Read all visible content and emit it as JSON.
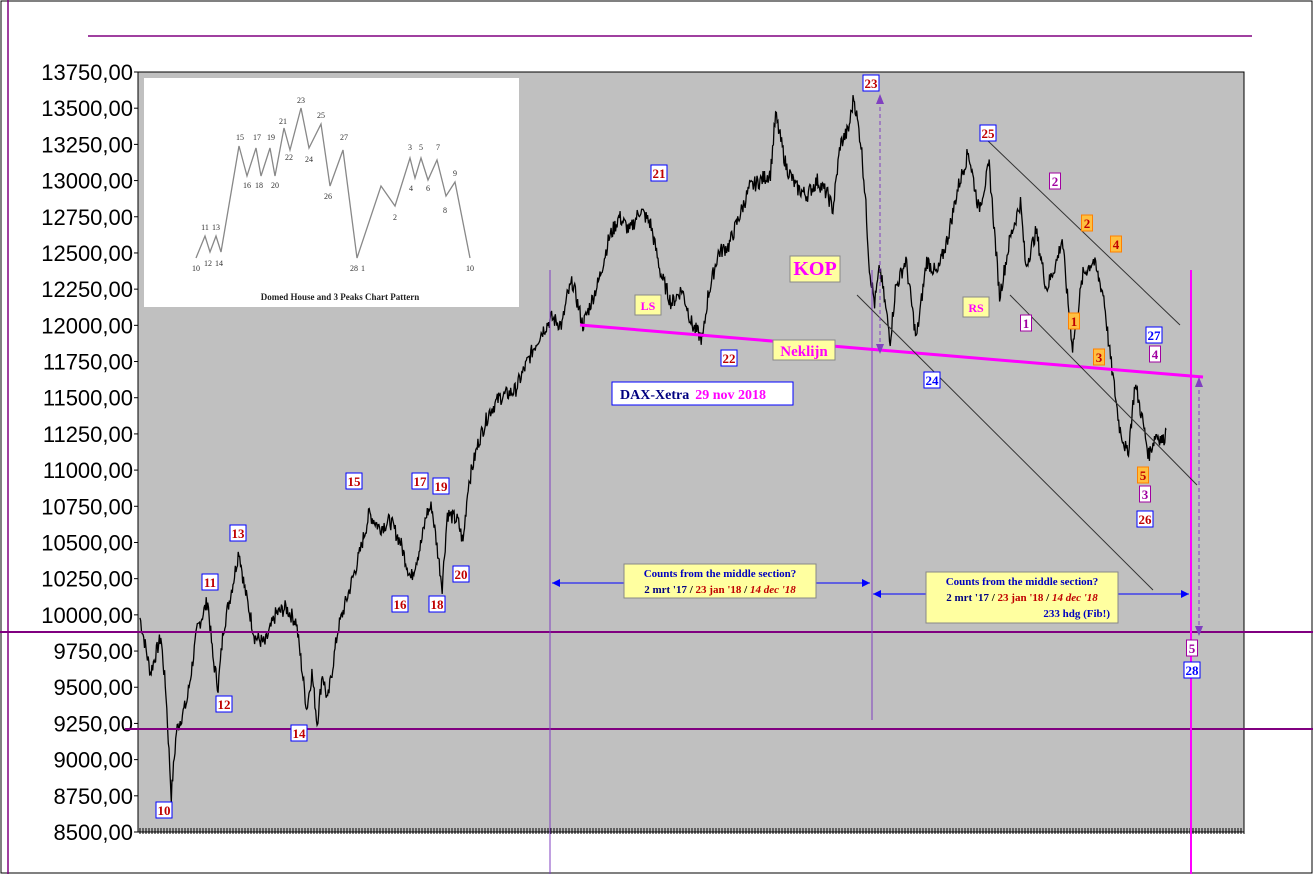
{
  "chart_data": {
    "type": "line",
    "title": "DAX-Xetra",
    "title_date": "29 nov 2018",
    "ylim": [
      8500,
      13750
    ],
    "yticks": [
      "13750,00",
      "13500,00",
      "13250,00",
      "13000,00",
      "12750,00",
      "12500,00",
      "12250,00",
      "12000,00",
      "11750,00",
      "11500,00",
      "11250,00",
      "11000,00",
      "10750,00",
      "10500,00",
      "10250,00",
      "10000,00",
      "9750,00",
      "9500,00",
      "9250,00",
      "9000,00",
      "8750,00",
      "8500,00"
    ],
    "x_start_index": 0,
    "x_end_index": 1000,
    "series": [
      {
        "points": [
          [
            0,
            9980
          ],
          [
            10,
            9600
          ],
          [
            20,
            9850
          ],
          [
            25,
            9450
          ],
          [
            30,
            8750
          ],
          [
            35,
            9200
          ],
          [
            45,
            9400
          ],
          [
            55,
            9900
          ],
          [
            65,
            10100
          ],
          [
            70,
            9700
          ],
          [
            75,
            9500
          ],
          [
            80,
            9900
          ],
          [
            90,
            10250
          ],
          [
            95,
            10450
          ],
          [
            100,
            10200
          ],
          [
            110,
            9850
          ],
          [
            120,
            9800
          ],
          [
            130,
            10000
          ],
          [
            140,
            10050
          ],
          [
            150,
            9950
          ],
          [
            160,
            9350
          ],
          [
            165,
            9600
          ],
          [
            170,
            9250
          ],
          [
            175,
            9600
          ],
          [
            180,
            9400
          ],
          [
            190,
            9900
          ],
          [
            200,
            10150
          ],
          [
            210,
            10400
          ],
          [
            220,
            10700
          ],
          [
            230,
            10600
          ],
          [
            240,
            10650
          ],
          [
            250,
            10500
          ],
          [
            260,
            10250
          ],
          [
            270,
            10500
          ],
          [
            275,
            10700
          ],
          [
            280,
            10750
          ],
          [
            290,
            10200
          ],
          [
            295,
            10700
          ],
          [
            305,
            10650
          ],
          [
            310,
            10500
          ],
          [
            315,
            10900
          ],
          [
            325,
            11200
          ],
          [
            335,
            11400
          ],
          [
            345,
            11500
          ],
          [
            360,
            11550
          ],
          [
            375,
            11800
          ],
          [
            385,
            11950
          ],
          [
            395,
            12050
          ],
          [
            405,
            12000
          ],
          [
            410,
            12200
          ],
          [
            415,
            12300
          ],
          [
            425,
            12000
          ],
          [
            430,
            12100
          ],
          [
            440,
            12300
          ],
          [
            450,
            12600
          ],
          [
            460,
            12750
          ],
          [
            470,
            12650
          ],
          [
            480,
            12800
          ],
          [
            490,
            12700
          ],
          [
            500,
            12350
          ],
          [
            510,
            12150
          ],
          [
            520,
            12250
          ],
          [
            530,
            12000
          ],
          [
            540,
            11900
          ],
          [
            545,
            12200
          ],
          [
            555,
            12500
          ],
          [
            565,
            12550
          ],
          [
            575,
            12750
          ],
          [
            585,
            12950
          ],
          [
            595,
            13000
          ],
          [
            605,
            13050
          ],
          [
            610,
            13450
          ],
          [
            620,
            13100
          ],
          [
            630,
            12950
          ],
          [
            640,
            12900
          ],
          [
            650,
            13000
          ],
          [
            660,
            12900
          ],
          [
            665,
            12800
          ],
          [
            672,
            13250
          ],
          [
            680,
            13350
          ],
          [
            685,
            13580
          ],
          [
            692,
            13250
          ],
          [
            696,
            12900
          ],
          [
            700,
            12400
          ],
          [
            705,
            12150
          ],
          [
            710,
            12400
          ],
          [
            720,
            11900
          ],
          [
            725,
            12250
          ],
          [
            735,
            12450
          ],
          [
            745,
            11900
          ],
          [
            755,
            12450
          ],
          [
            765,
            12350
          ],
          [
            775,
            12600
          ],
          [
            785,
            12950
          ],
          [
            795,
            13200
          ],
          [
            805,
            12800
          ],
          [
            815,
            13100
          ],
          [
            825,
            12200
          ],
          [
            835,
            12600
          ],
          [
            845,
            12850
          ],
          [
            850,
            12400
          ],
          [
            860,
            12650
          ],
          [
            870,
            12250
          ],
          [
            880,
            12450
          ],
          [
            885,
            12600
          ],
          [
            890,
            12200
          ],
          [
            895,
            11850
          ],
          [
            905,
            12350
          ],
          [
            915,
            12450
          ],
          [
            925,
            12200
          ],
          [
            930,
            11850
          ],
          [
            940,
            11300
          ],
          [
            948,
            11100
          ],
          [
            955,
            11600
          ],
          [
            962,
            11350
          ],
          [
            968,
            11100
          ],
          [
            975,
            11250
          ],
          [
            982,
            11200
          ],
          [
            985,
            11280
          ]
        ]
      }
    ]
  },
  "annotations": {
    "kop": "KOP",
    "neklijn": "Neklijn",
    "ls": "LS",
    "rs": "RS",
    "counts1_line1": "Counts  from  the  middle  section?",
    "counts1_a": "2 mrt '17",
    "counts1_b": "23 jan '18",
    "counts1_c": "14 dec '18",
    "counts2_line1": "Counts  from  the  middle  section?",
    "counts2_a": "2 mrt '17",
    "counts2_b": "23 jan '18",
    "counts2_c": "14 dec '18",
    "counts2_d": "233 hdg (Fib!)",
    "wave_labels": [
      {
        "text": "10",
        "style": "blue-red"
      },
      {
        "text": "11",
        "style": "blue-red"
      },
      {
        "text": "12",
        "style": "blue-red"
      },
      {
        "text": "13",
        "style": "blue-red"
      },
      {
        "text": "14",
        "style": "blue-red"
      },
      {
        "text": "15",
        "style": "blue-red"
      },
      {
        "text": "16",
        "style": "blue-red"
      },
      {
        "text": "17",
        "style": "blue-red"
      },
      {
        "text": "18",
        "style": "blue-red"
      },
      {
        "text": "19",
        "style": "blue-red"
      },
      {
        "text": "20",
        "style": "blue-red"
      },
      {
        "text": "21",
        "style": "blue-red"
      },
      {
        "text": "22",
        "style": "blue-red"
      },
      {
        "text": "23",
        "style": "blue-red"
      },
      {
        "text": "24",
        "style": "blue-blue"
      },
      {
        "text": "25",
        "style": "blue-red"
      },
      {
        "text": "26",
        "style": "blue-red"
      },
      {
        "text": "27",
        "style": "blue-blue"
      },
      {
        "text": "28",
        "style": "blue-blue"
      },
      {
        "text": "1",
        "style": "purple-purple"
      },
      {
        "text": "2",
        "style": "purple-purple"
      },
      {
        "text": "3",
        "style": "purple-purple"
      },
      {
        "text": "4",
        "style": "purple-purple"
      },
      {
        "text": "5",
        "style": "purple-purple"
      },
      {
        "text": "1",
        "style": "orange"
      },
      {
        "text": "2",
        "style": "orange"
      },
      {
        "text": "3",
        "style": "orange"
      },
      {
        "text": "4",
        "style": "orange"
      },
      {
        "text": "5",
        "style": "orange"
      }
    ]
  },
  "inset": {
    "caption": "Domed House and 3 Peaks Chart Pattern",
    "labels": [
      "10",
      "11",
      "13",
      "12",
      "14",
      "15",
      "16",
      "17",
      "18",
      "19",
      "20",
      "21",
      "22",
      "23",
      "24",
      "25",
      "26",
      "27",
      "28",
      "1",
      "2",
      "3",
      "4",
      "5",
      "6",
      "7",
      "8",
      "9",
      "10"
    ]
  },
  "colors": {
    "plot_bg": "#c0c0c0",
    "price": "#000000",
    "neckline": "#ff00ff",
    "hline": "#800080",
    "wave_blue": "#0000ff",
    "wave_red": "#c00000",
    "yellow_box": "#ffffa0"
  }
}
